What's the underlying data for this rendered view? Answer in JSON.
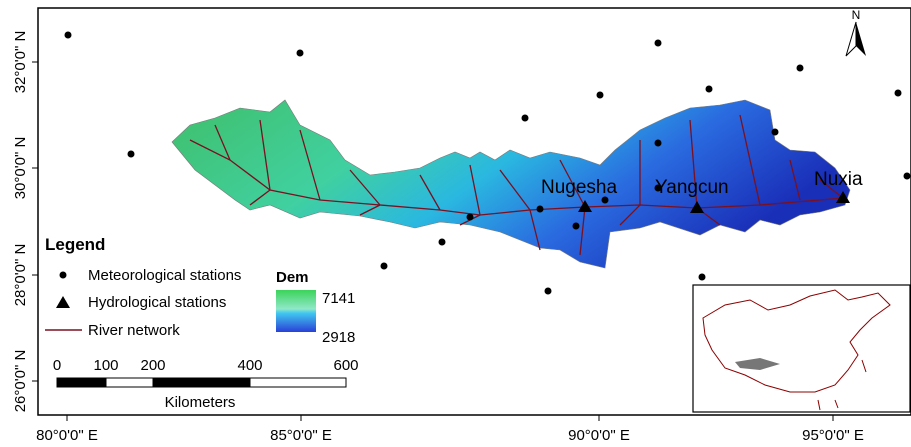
{
  "map": {
    "x_axis_labels": [
      "80°0'0\" E",
      "85°0'0\" E",
      "90°0'0\" E",
      "95°0'0\" E"
    ],
    "y_axis_labels": [
      "32°0'0\" N",
      "30°0'0\" N",
      "28°0'0\" N",
      "26°0'0\" N"
    ],
    "stations": [
      "Nugesha",
      "Yangcun",
      "Nuxia"
    ],
    "north": "N",
    "legend": {
      "title": "Legend",
      "items": [
        "Meteorological stations",
        "Hydrological stations",
        "River network"
      ],
      "dem_title": "Dem",
      "dem_high": "7141",
      "dem_low": "2918"
    },
    "scale_bar": {
      "ticks": [
        "0",
        "100",
        "200",
        "400",
        "600"
      ],
      "unit": "Kilometers"
    }
  }
}
